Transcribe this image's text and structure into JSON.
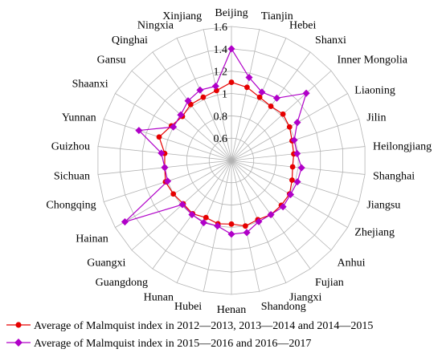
{
  "chart_data": {
    "type": "radar",
    "title": "",
    "rlim": [
      0.4,
      1.6
    ],
    "ticks": [
      0.6,
      0.8,
      1.0,
      1.2,
      1.4,
      1.6
    ],
    "tick_labels": [
      "0.6",
      "0.8",
      "1",
      "1.2",
      "1.4",
      "1.6"
    ],
    "grid": true,
    "legend_position": "bottom",
    "categories": [
      "Beijing",
      "Tianjin",
      "Hebei",
      "Shanxi",
      "Inner Mongolia",
      "Liaoning",
      "Jilin",
      "Heilongjiang",
      "Shanghai",
      "Jiangsu",
      "Zhejiang",
      "Anhui",
      "Fujian",
      "Jiangxi",
      "Shandong",
      "Henan",
      "Hubei",
      "Hunan",
      "Guangdong",
      "Guangxi",
      "Hainan",
      "Chongqing",
      "Sichuan",
      "Guizhou",
      "Yunnan",
      "Shaanxi",
      "Gansu",
      "Qinghai",
      "Ningxia",
      "Xinjiang"
    ],
    "series": [
      {
        "name": "Average of Malmquist index in 2012—2013, 2013—2014 and 2014—2015",
        "color": "#e60000",
        "values": [
          1.1,
          1.07,
          1.02,
          1.0,
          1.02,
          1.0,
          0.97,
          0.96,
          0.95,
          0.97,
          1.0,
          1.0,
          1.0,
          0.98,
          1.0,
          0.97,
          0.98,
          0.96,
          0.99,
          0.98,
          1.0,
          1.02,
          1.0,
          1.0,
          1.08,
          1.02,
          0.99,
          1.02,
          1.02,
          1.04
        ]
      },
      {
        "name": "Average of Malmquist index in 2015—2016 and 2016—2017",
        "color": "#b000c8",
        "values": [
          1.4,
          1.16,
          1.07,
          1.09,
          1.3,
          1.08,
          0.99,
          0.99,
          1.03,
          1.02,
          1.01,
          1.02,
          1.0,
          1.0,
          1.06,
          1.06,
          1.0,
          1.01,
          1.0,
          0.99,
          1.5,
          1.0,
          1.0,
          1.03,
          1.27,
          1.0,
          1.01,
          1.06,
          1.09,
          1.08
        ]
      }
    ]
  }
}
